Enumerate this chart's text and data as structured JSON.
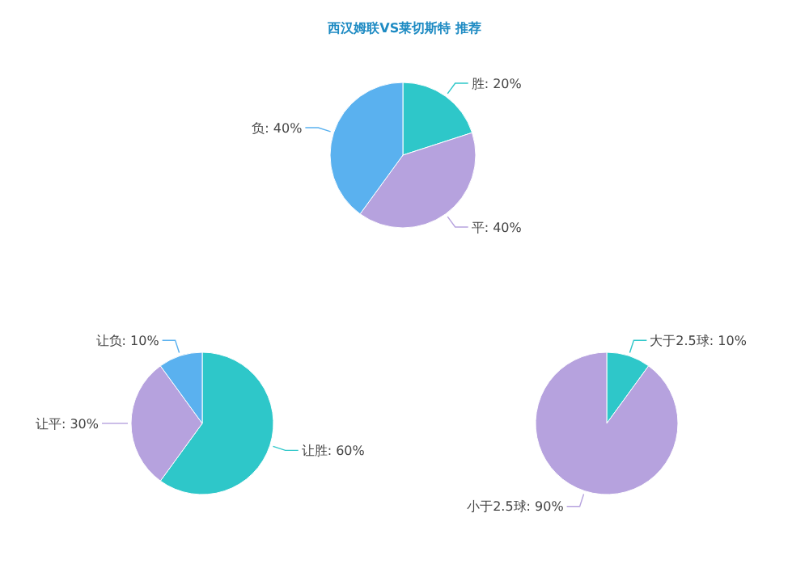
{
  "chart_data": [
    {
      "type": "pie",
      "title": "西汉姆联VS莱切斯特 推荐",
      "categories": [
        "胜",
        "平",
        "负"
      ],
      "values": [
        20,
        40,
        40
      ],
      "value_labels": [
        "20%",
        "40%",
        "40%"
      ],
      "colors": [
        "#2ec7c9",
        "#b6a2de",
        "#5ab1ef"
      ]
    },
    {
      "type": "pie",
      "categories": [
        "让胜",
        "让平",
        "让负"
      ],
      "values": [
        60,
        30,
        10
      ],
      "value_labels": [
        "60%",
        "30%",
        "10%"
      ],
      "colors": [
        "#2ec7c9",
        "#b6a2de",
        "#5ab1ef"
      ]
    },
    {
      "type": "pie",
      "categories": [
        "大于2.5球",
        "小于2.5球"
      ],
      "values": [
        10,
        90
      ],
      "value_labels": [
        "10%",
        "90%"
      ],
      "colors": [
        "#2ec7c9",
        "#b6a2de"
      ]
    }
  ]
}
